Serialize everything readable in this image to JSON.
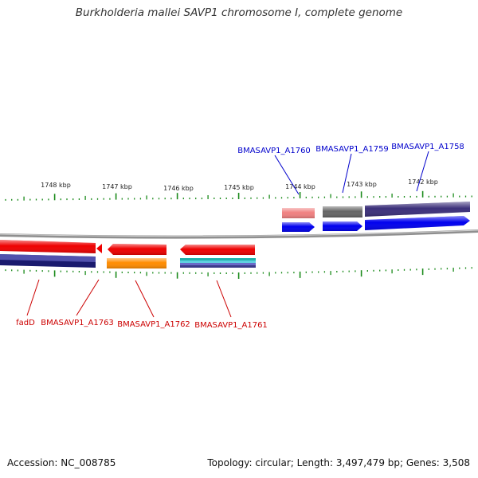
{
  "title": "Burkholderia mallei SAVP1 chromosome I, complete genome",
  "footer": {
    "accession": "Accession: NC_008785",
    "info": "Topology: circular; Length: 3,497,479 bp; Genes: 3,508"
  },
  "colors": {
    "forward_label": "#0000cc",
    "reverse_label": "#cc0000",
    "tick": "#1a8a1a",
    "backbone": "#8f8f8f",
    "scale_label": "#222222"
  },
  "scale": {
    "unit": "kbp",
    "labels": [
      {
        "kbp": 1748,
        "text": "1748 kbp"
      },
      {
        "kbp": 1747,
        "text": "1747 kbp"
      },
      {
        "kbp": 1746,
        "text": "1746 kbp"
      },
      {
        "kbp": 1745,
        "text": "1745 kbp"
      },
      {
        "kbp": 1744,
        "text": "1744 kbp"
      },
      {
        "kbp": 1743,
        "text": "1743 kbp"
      },
      {
        "kbp": 1742,
        "text": "1742 kbp"
      }
    ]
  },
  "genes": {
    "forward": [
      {
        "label": "BMASAVP1_A1760",
        "cds_color": "#0000ee",
        "feature_color": "#f08080"
      },
      {
        "label": "BMASAVP1_A1759",
        "cds_color": "#0000ee",
        "feature_color": "#666666"
      },
      {
        "label": "BMASAVP1_A1758",
        "cds_color": "#0000ee",
        "feature_color": "#3b2f7a"
      }
    ],
    "reverse": [
      {
        "label": "fadD",
        "cds_color": "#ee0000",
        "feature_color": "#1a1a6e"
      },
      {
        "label": "BMASAVP1_A1763",
        "cds_color": "#ee0000",
        "feature_color": null
      },
      {
        "label": "BMASAVP1_A1762",
        "cds_color": "#ee0000",
        "feature_color": "#ff8c00"
      },
      {
        "label": "BMASAVP1_A1761",
        "cds_color": "#ee0000",
        "feature_color": "#20b2aa"
      }
    ]
  }
}
